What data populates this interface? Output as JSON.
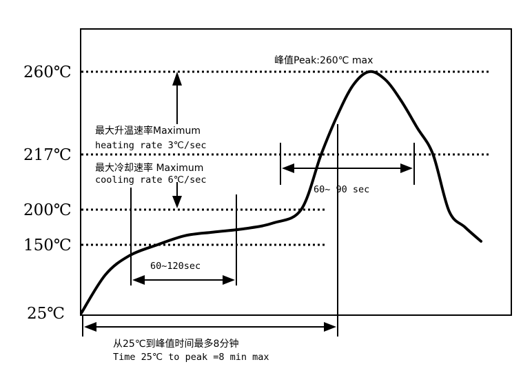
{
  "chart_data": {
    "type": "line",
    "title": "",
    "xlabel": "",
    "ylabel": "",
    "y_tick_labels": [
      "260℃",
      "217℃",
      "200℃",
      "150℃",
      "25℃"
    ],
    "y_ticks": [
      260,
      217,
      200,
      150,
      25
    ],
    "peak_label": "峰值Peak:260℃ max",
    "heating_label_cn": "最大升温速率Maximum",
    "heating_label_en": "heating rate 3℃/sec",
    "cooling_label_cn": "最大冷却速率 Maximum",
    "cooling_label_en": "cooling rate 6℃/sec",
    "soak_window_label": "60~120sec",
    "liquidus_window_label": "60~ 90 sec",
    "total_time_label_cn": "从25℃到峰值时间最多8分钟",
    "total_time_label_en": "Time 25℃ to peak =8 min max",
    "reference_lines": [
      {
        "y": 260,
        "extent": "full"
      },
      {
        "y": 217,
        "extent": "full"
      },
      {
        "y": 200,
        "extent": "partial"
      },
      {
        "y": 150,
        "extent": "partial"
      }
    ],
    "grid": false,
    "series": [
      {
        "points": [
          [
            0,
            25
          ],
          [
            6,
            95
          ],
          [
            12,
            130
          ],
          [
            19,
            150
          ],
          [
            26,
            163
          ],
          [
            33,
            168
          ],
          [
            41,
            173
          ],
          [
            48,
            181
          ],
          [
            55,
            200
          ],
          [
            60,
            217
          ],
          [
            64,
            237
          ],
          [
            68,
            253
          ],
          [
            72,
            260
          ],
          [
            76,
            256
          ],
          [
            80,
            245
          ],
          [
            84,
            231
          ],
          [
            88,
            217
          ],
          [
            92,
            198
          ],
          [
            96,
            175
          ],
          [
            100,
            155
          ]
        ]
      }
    ]
  }
}
